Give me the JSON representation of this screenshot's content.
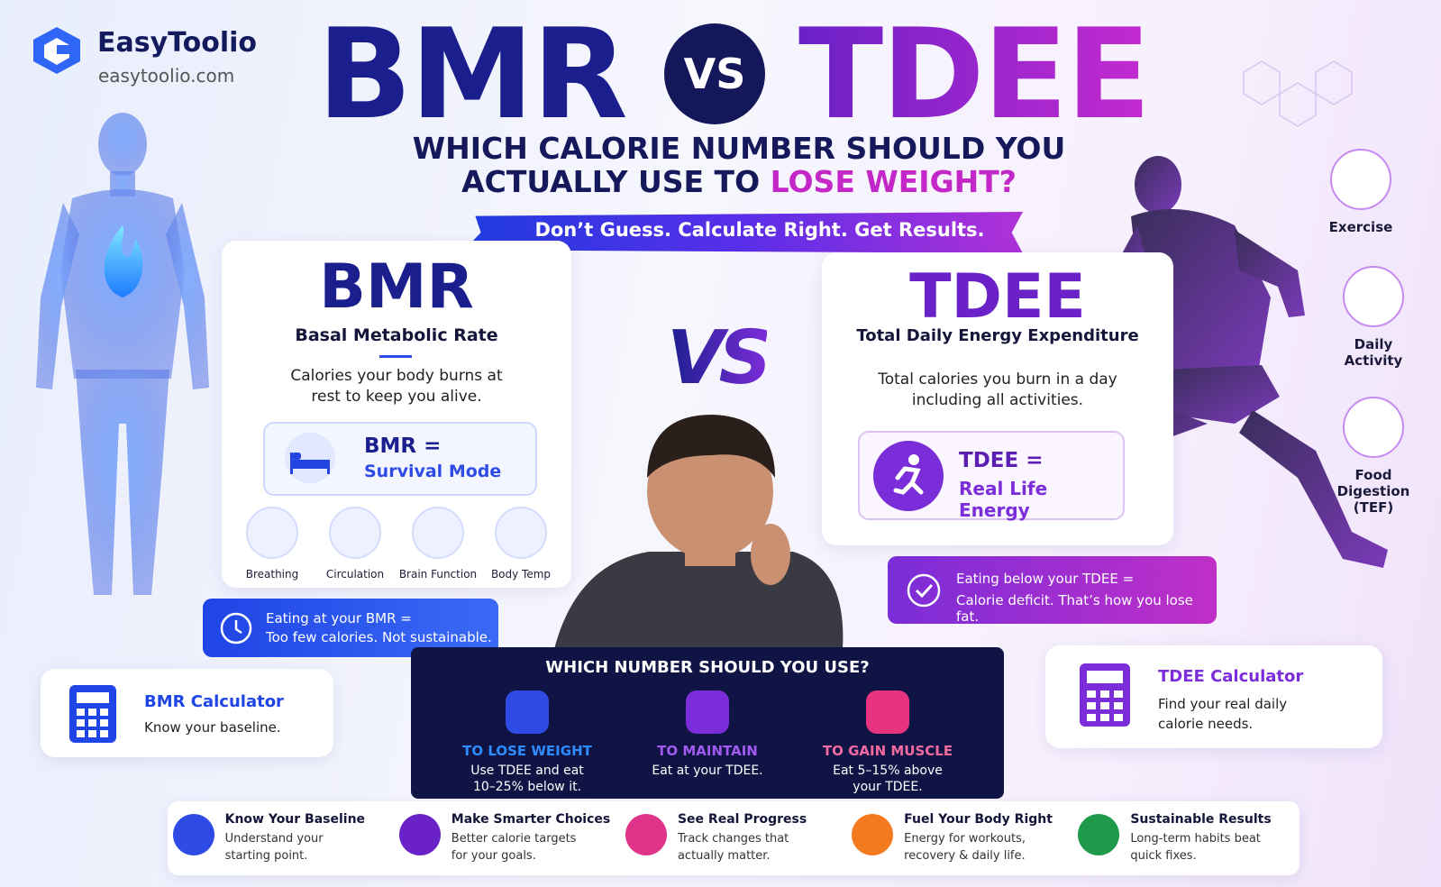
{
  "brand": {
    "name": "EasyToolio",
    "url": "easytoolio.com"
  },
  "header": {
    "title_left": "BMR",
    "vs": "VS",
    "title_right": "TDEE",
    "subtitle_line1": "WHICH CALORIE NUMBER SHOULD YOU",
    "subtitle_line2": "ACTUALLY USE TO",
    "subtitle_highlight": "LOSE WEIGHT?",
    "tagline": "Don’t Guess. Calculate Right. Get Results."
  },
  "bmr_card": {
    "title": "BMR",
    "subtitle": "Basal Metabolic Rate",
    "description": "Calories your body burns at rest to keep you alive.",
    "mode_label": "BMR =",
    "mode_value": "Survival Mode",
    "functions": [
      "Breathing",
      "Circulation",
      "Brain Function",
      "Body Temp"
    ]
  },
  "bmr_note": {
    "line1": "Eating at your BMR =",
    "line2": "Too few calories. Not sustainable."
  },
  "center_vs": "VS",
  "tdee_card": {
    "title": "TDEE",
    "subtitle": "Total Daily Energy Expenditure",
    "description": "Total calories you burn in a day including all activities.",
    "mode_label": "TDEE =",
    "mode_value": "Real Life Energy"
  },
  "tdee_note": {
    "line1": "Eating below your TDEE =",
    "line2": "Calorie deficit. That’s how you lose fat."
  },
  "tdee_factors": [
    "Exercise",
    "Daily Activity",
    "Food Digestion (TEF)"
  ],
  "bmr_calculator": {
    "title": "BMR Calculator",
    "description": "Know your baseline."
  },
  "tdee_calculator": {
    "title": "TDEE Calculator",
    "description": "Find your real daily calorie needs."
  },
  "which_number": {
    "title": "WHICH NUMBER SHOULD YOU USE?",
    "options": [
      {
        "title": "TO LOSE WEIGHT",
        "description": "Use TDEE and eat 10–25% below it."
      },
      {
        "title": "TO MAINTAIN",
        "description": "Eat at your TDEE."
      },
      {
        "title": "TO GAIN MUSCLE",
        "description": "Eat 5–15% above your TDEE."
      }
    ]
  },
  "benefits": [
    {
      "title": "Know Your Baseline",
      "description": "Understand your starting point."
    },
    {
      "title": "Make Smarter Choices",
      "description": "Better calorie targets for your goals."
    },
    {
      "title": "See Real Progress",
      "description": "Track changes that actually matter."
    },
    {
      "title": "Fuel Your Body Right",
      "description": "Energy for workouts, recovery & daily life."
    },
    {
      "title": "Sustainable Results",
      "description": "Long-term habits beat quick fixes."
    }
  ]
}
